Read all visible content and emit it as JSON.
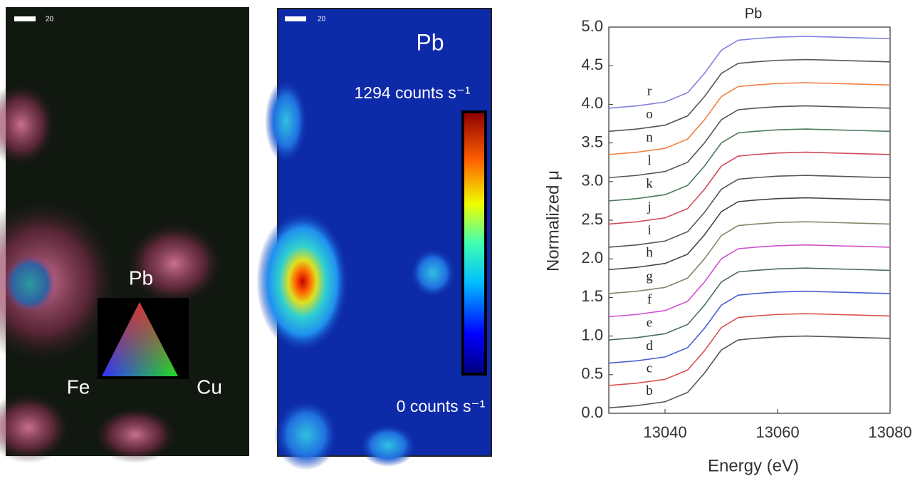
{
  "map_panels": {
    "rgb": {
      "scale_label": "20",
      "corner_top": "Pb",
      "corner_left": "Fe",
      "corner_right": "Cu"
    },
    "pb": {
      "scale_label": "20",
      "element": "Pb",
      "max_label": "1294 counts s⁻¹",
      "min_label": "0 counts s⁻¹"
    }
  },
  "chart_data": {
    "type": "line",
    "title": "Pb",
    "x_label": "Energy (eV)",
    "y_label": "Normalized μ",
    "x": [
      13030,
      13035,
      13040,
      13044,
      13047,
      13050,
      13053,
      13056,
      13060,
      13065,
      13070,
      13075,
      13080
    ],
    "xlim": [
      13030,
      13080
    ],
    "xticks": [
      13040,
      13060,
      13080
    ],
    "ylim": [
      0,
      5
    ],
    "yticks": [
      {
        "value": 0,
        "label": "0.0"
      },
      {
        "value": 0.5,
        "label": "0.5"
      },
      {
        "value": 1,
        "label": "1.0"
      },
      {
        "value": 1.5,
        "label": "1.5"
      },
      {
        "value": 2,
        "label": "2.0"
      },
      {
        "value": 2.5,
        "label": "2.5"
      },
      {
        "value": 3,
        "label": "3.0"
      },
      {
        "value": 3.5,
        "label": "3.5"
      },
      {
        "value": 4,
        "label": "4.0"
      },
      {
        "value": 4.5,
        "label": "4.5"
      },
      {
        "value": 5,
        "label": "5.0"
      }
    ],
    "series": [
      {
        "name": "b",
        "color": "#555555",
        "values": [
          0.07,
          0.1,
          0.15,
          0.27,
          0.52,
          0.82,
          0.95,
          0.97,
          0.99,
          1.0,
          0.99,
          0.98,
          0.97
        ]
      },
      {
        "name": "c",
        "color": "#d9534f",
        "values": [
          0.36,
          0.39,
          0.44,
          0.56,
          0.81,
          1.11,
          1.24,
          1.26,
          1.28,
          1.29,
          1.28,
          1.27,
          1.26
        ]
      },
      {
        "name": "d",
        "color": "#4a5fd0",
        "values": [
          0.65,
          0.68,
          0.73,
          0.85,
          1.1,
          1.4,
          1.53,
          1.55,
          1.57,
          1.58,
          1.57,
          1.56,
          1.55
        ]
      },
      {
        "name": "e",
        "color": "#4c6e5a",
        "values": [
          0.95,
          0.98,
          1.03,
          1.15,
          1.4,
          1.7,
          1.83,
          1.85,
          1.87,
          1.88,
          1.87,
          1.86,
          1.85
        ]
      },
      {
        "name": "f",
        "color": "#d050d0",
        "values": [
          1.25,
          1.28,
          1.33,
          1.45,
          1.7,
          2.0,
          2.13,
          2.15,
          2.17,
          2.18,
          2.17,
          2.16,
          2.15
        ]
      },
      {
        "name": "g",
        "color": "#7f8a68",
        "values": [
          1.55,
          1.58,
          1.63,
          1.75,
          2.0,
          2.3,
          2.43,
          2.45,
          2.47,
          2.48,
          2.47,
          2.46,
          2.45
        ]
      },
      {
        "name": "h",
        "color": "#444444",
        "values": [
          1.86,
          1.89,
          1.94,
          2.06,
          2.31,
          2.61,
          2.74,
          2.76,
          2.78,
          2.79,
          2.78,
          2.77,
          2.76
        ]
      },
      {
        "name": "i",
        "color": "#555555",
        "values": [
          2.15,
          2.18,
          2.23,
          2.35,
          2.6,
          2.9,
          3.03,
          3.05,
          3.07,
          3.08,
          3.07,
          3.06,
          3.05
        ]
      },
      {
        "name": "j",
        "color": "#d04a5a",
        "values": [
          2.45,
          2.48,
          2.53,
          2.65,
          2.9,
          3.2,
          3.33,
          3.35,
          3.37,
          3.38,
          3.37,
          3.36,
          3.35
        ]
      },
      {
        "name": "k",
        "color": "#4a7a5a",
        "values": [
          2.75,
          2.78,
          2.83,
          2.95,
          3.2,
          3.5,
          3.63,
          3.65,
          3.67,
          3.68,
          3.67,
          3.66,
          3.65
        ]
      },
      {
        "name": "l",
        "color": "#555555",
        "values": [
          3.05,
          3.08,
          3.13,
          3.25,
          3.5,
          3.8,
          3.93,
          3.95,
          3.97,
          3.98,
          3.97,
          3.96,
          3.95
        ]
      },
      {
        "name": "n",
        "color": "#f08040",
        "values": [
          3.35,
          3.38,
          3.43,
          3.55,
          3.8,
          4.1,
          4.23,
          4.25,
          4.27,
          4.28,
          4.27,
          4.26,
          4.25
        ]
      },
      {
        "name": "o",
        "color": "#555555",
        "values": [
          3.65,
          3.68,
          3.73,
          3.85,
          4.1,
          4.4,
          4.53,
          4.55,
          4.57,
          4.58,
          4.57,
          4.56,
          4.55
        ]
      },
      {
        "name": "r",
        "color": "#8080e0",
        "values": [
          3.95,
          3.98,
          4.03,
          4.15,
          4.4,
          4.7,
          4.83,
          4.85,
          4.87,
          4.88,
          4.87,
          4.86,
          4.85
        ]
      }
    ]
  }
}
